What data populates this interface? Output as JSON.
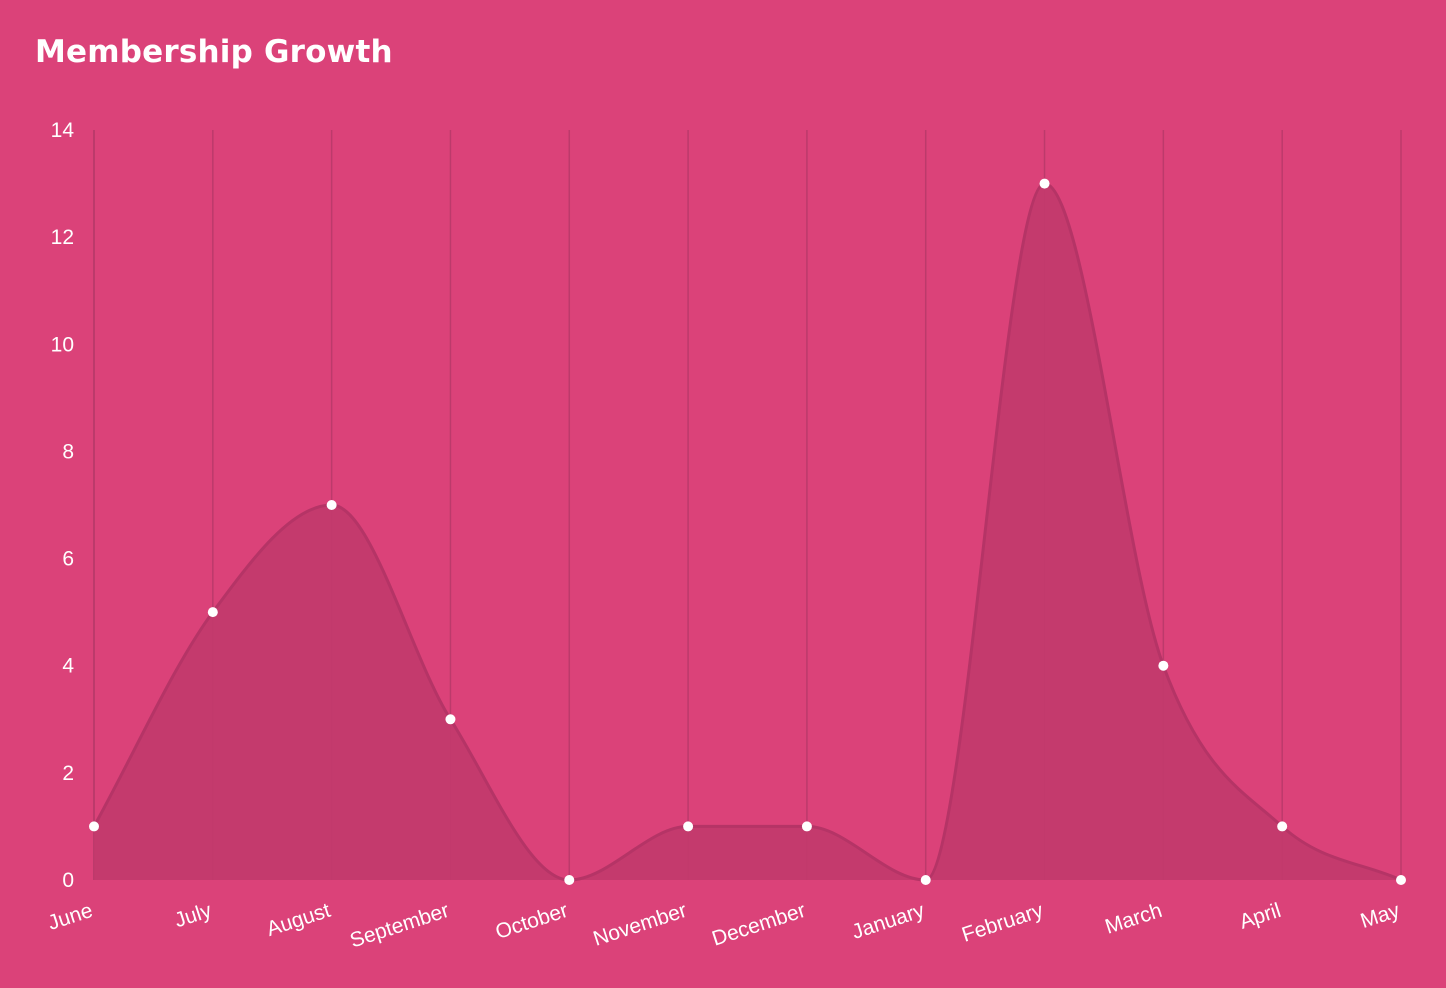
{
  "chart_data": {
    "type": "area",
    "title": "Membership Growth",
    "categories": [
      "June",
      "July",
      "August",
      "September",
      "October",
      "November",
      "December",
      "January",
      "February",
      "March",
      "April",
      "May"
    ],
    "series": [
      {
        "values": [
          1,
          5,
          7,
          3,
          0,
          1,
          1,
          0,
          13,
          4,
          1,
          0
        ]
      }
    ],
    "ylim": [
      0,
      14
    ],
    "yticks": [
      0,
      2,
      4,
      6,
      8,
      10,
      12,
      14
    ],
    "grid": "vertical",
    "xlabel": "",
    "ylabel": ""
  },
  "colors": {
    "background": "#DB4279",
    "area_fill": "#C2396C",
    "line": "#B53466",
    "grid": "#BC3A6B",
    "point": "#FFFFFF",
    "text": "#FFFFFF"
  }
}
